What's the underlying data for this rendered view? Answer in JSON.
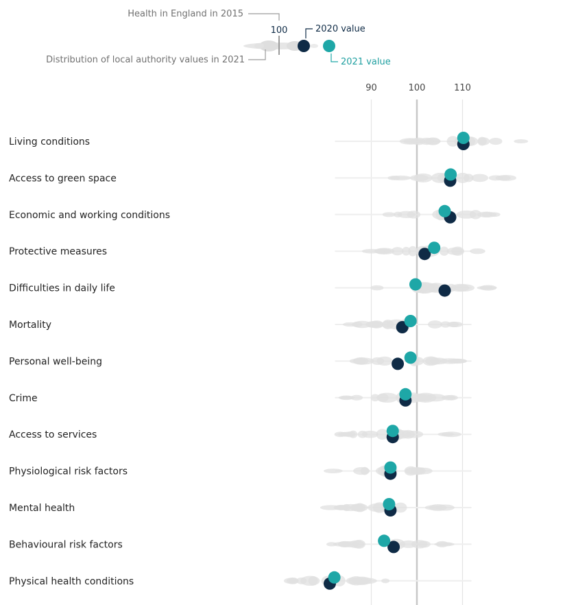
{
  "legend": {
    "baseline_label": "Health in England in 2015",
    "baseline_value": "100",
    "distribution_label": "Distribution of local authority values in 2021",
    "value_2020_label": "2020 value",
    "value_2021_label": "2021 value"
  },
  "chart_data": {
    "type": "scatter",
    "xlim": [
      80,
      112
    ],
    "x_ticks": [
      90,
      100,
      110
    ],
    "x_tick_labels": [
      "90",
      "100",
      "110"
    ],
    "baseline": 100,
    "grid": true,
    "colors": {
      "v2020": "#0f2b46",
      "v2021": "#1ea7a7",
      "distribution": "#dcdcdc"
    },
    "categories": [
      "Living conditions",
      "Access to green space",
      "Economic and working conditions",
      "Protective measures",
      "Difficulties in daily life",
      "Mortality",
      "Personal well-being",
      "Crime",
      "Access to services",
      "Physiological risk factors",
      "Mental health",
      "Behavioural risk factors",
      "Physical health conditions"
    ],
    "series": [
      {
        "name": "2020 value",
        "values": [
          110.2,
          107.3,
          107.3,
          101.7,
          106.1,
          96.8,
          95.8,
          97.5,
          94.7,
          94.2,
          94.2,
          94.9,
          80.9
        ]
      },
      {
        "name": "2021 value",
        "values": [
          110.2,
          107.4,
          106.1,
          103.8,
          99.7,
          98.6,
          98.6,
          97.5,
          94.7,
          94.2,
          93.9,
          92.8,
          81.9
        ]
      }
    ]
  }
}
